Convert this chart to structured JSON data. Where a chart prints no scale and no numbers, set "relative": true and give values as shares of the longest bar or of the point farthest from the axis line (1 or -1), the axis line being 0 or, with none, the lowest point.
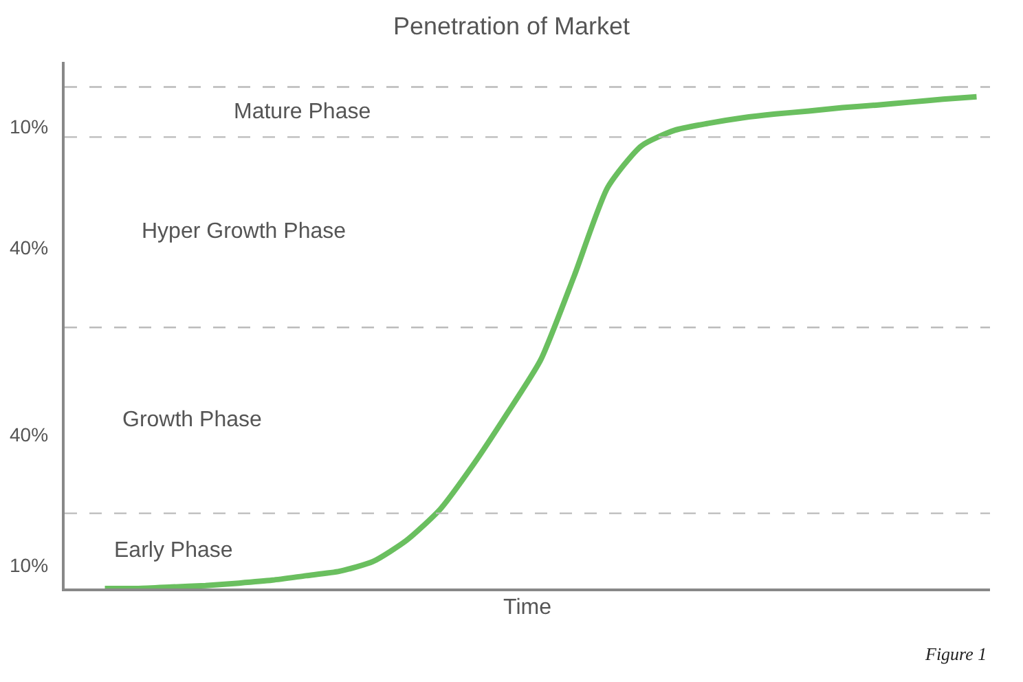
{
  "chart_data": {
    "type": "line",
    "title": "Penetration of Market",
    "xlabel": "Time",
    "relative": true,
    "categories": [
      null,
      null,
      null,
      null,
      null,
      null,
      null,
      null,
      null,
      null,
      null,
      null,
      null,
      null,
      null,
      null,
      null,
      null,
      null,
      null,
      null,
      null,
      null,
      null,
      null,
      null,
      null
    ],
    "series": [
      {
        "color": "#6abf5f",
        "values": [
          0,
          0,
          0.003,
          0.006,
          0.011,
          0.017,
          0.026,
          0.035,
          0.055,
          0.098,
          0.161,
          0.253,
          0.356,
          0.465,
          0.636,
          0.816,
          0.9,
          0.932,
          0.946,
          0.957,
          0.965,
          0.971,
          0.978,
          0.983,
          0.989,
          0.995,
          1
        ]
      }
    ],
    "ref_lines": [
      {
        "axis": "y",
        "value": 0.153,
        "color": "#bbbbbb",
        "line_style": "dashed"
      },
      {
        "axis": "y",
        "value": 0.531,
        "color": "#bbbbbb",
        "line_style": "dashed"
      },
      {
        "axis": "y",
        "value": 0.918,
        "color": "#bbbbbb",
        "line_style": "dashed"
      },
      {
        "axis": "y",
        "value": 1.02,
        "color": "#bbbbbb",
        "line_style": "dashed"
      }
    ],
    "annotations": [
      "10%",
      "40%",
      "40%",
      "10%",
      "Early Phase",
      "Growth Phase",
      "Hyper Growth Phase",
      "Mature Phase",
      "Figure 1"
    ],
    "marker": "none",
    "line_style": "solid"
  }
}
